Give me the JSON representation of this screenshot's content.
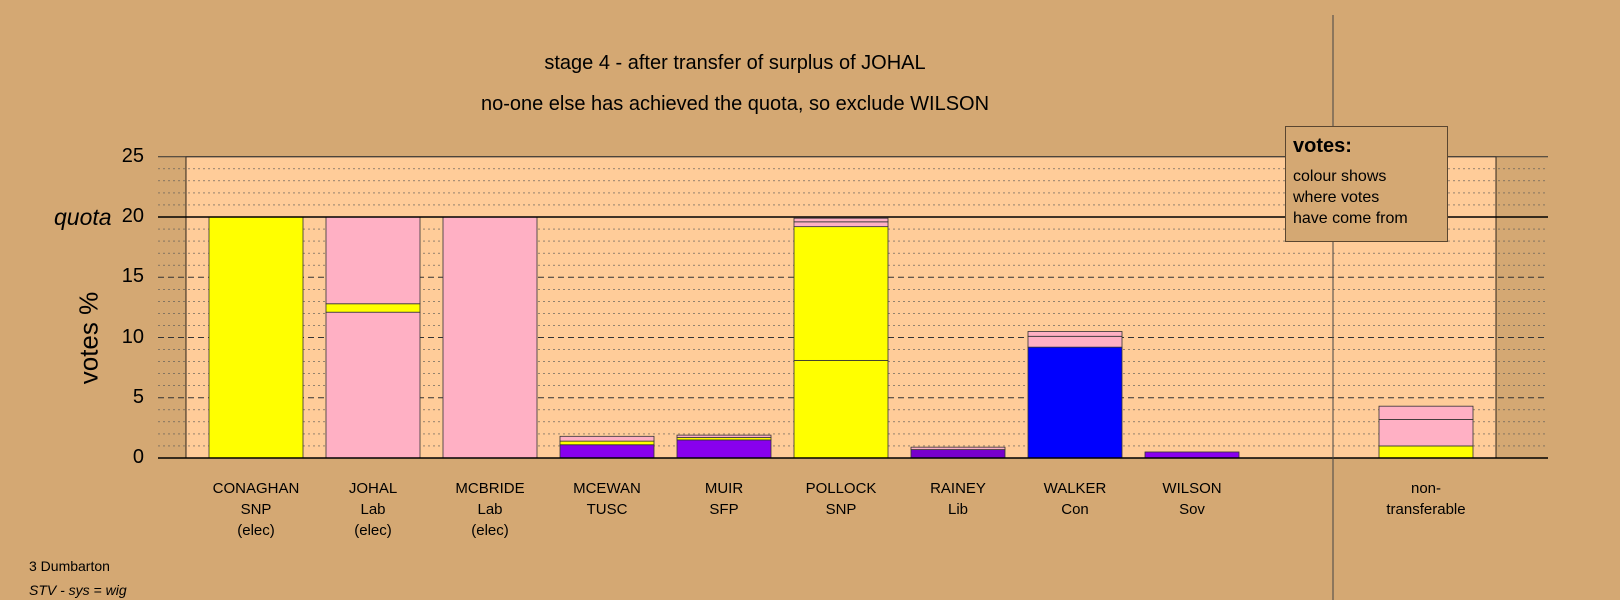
{
  "titles": {
    "line1": "stage 4 - after transfer of surplus of JOHAL",
    "line2": "no-one else has achieved the quota, so exclude WILSON"
  },
  "legend": {
    "title": "votes:",
    "lines": [
      "colour shows",
      "where votes",
      "have come from"
    ]
  },
  "footer": {
    "line1": "3 Dumbarton",
    "line2": "STV - sys = wig"
  },
  "colors": {
    "background": "#d4a873",
    "plot_area": "#ffcc99",
    "SNP": "#ffff00",
    "Lab": "#ffb0c4",
    "Con": "#0000ff",
    "Other": "#8800ee",
    "Lib": "#7700cc"
  },
  "chart_data": {
    "type": "bar",
    "stacked": true,
    "ylabel": "votes %",
    "ylim": [
      0,
      25
    ],
    "yticks": [
      "0",
      "5",
      "10",
      "15",
      "20",
      "25"
    ],
    "quota": 20,
    "quota_label": "quota",
    "grid": true,
    "legend_position": "top-right",
    "candidates": [
      {
        "name": "CONAGHAN",
        "party": "SNP",
        "status": "(elec)",
        "segments": [
          {
            "source": "SNP",
            "color": "#ffff00",
            "value": 20
          }
        ]
      },
      {
        "name": "JOHAL",
        "party": "Lab",
        "status": "(elec)",
        "segments": [
          {
            "source": "Lab",
            "color": "#ffb0c4",
            "value": 12.1
          },
          {
            "source": "SNP",
            "color": "#ffff00",
            "value": 0.7
          },
          {
            "source": "Lab",
            "color": "#ffb0c4",
            "value": 7.2
          }
        ]
      },
      {
        "name": "MCBRIDE",
        "party": "Lab",
        "status": "(elec)",
        "segments": [
          {
            "source": "Lab",
            "color": "#ffb0c4",
            "value": 20
          }
        ]
      },
      {
        "name": "MCEWAN",
        "party": "TUSC",
        "status": "",
        "segments": [
          {
            "source": "TUSC",
            "color": "#8800ee",
            "value": 1.1
          },
          {
            "source": "SNP",
            "color": "#ffff00",
            "value": 0.3
          },
          {
            "source": "Lab",
            "color": "#ffb0c4",
            "value": 0.4
          }
        ]
      },
      {
        "name": "MUIR",
        "party": "SFP",
        "status": "",
        "segments": [
          {
            "source": "SFP",
            "color": "#8800ee",
            "value": 1.5
          },
          {
            "source": "SNP",
            "color": "#ffff00",
            "value": 0.2
          },
          {
            "source": "Lab",
            "color": "#ffb0c4",
            "value": 0.2
          }
        ]
      },
      {
        "name": "POLLOCK",
        "party": "SNP",
        "status": "",
        "segments": [
          {
            "source": "SNP",
            "color": "#ffff00",
            "value": 8.1
          },
          {
            "source": "SNP",
            "color": "#ffff00",
            "value": 11.1
          },
          {
            "source": "Lab",
            "color": "#ffb0c4",
            "value": 0.4
          },
          {
            "source": "Lab",
            "color": "#ffb0c4",
            "value": 0.3
          }
        ]
      },
      {
        "name": "RAINEY",
        "party": "Lib",
        "status": "",
        "segments": [
          {
            "source": "Lib",
            "color": "#7700cc",
            "value": 0.7
          },
          {
            "source": "Lab",
            "color": "#ffb0c4",
            "value": 0.2
          }
        ]
      },
      {
        "name": "WALKER",
        "party": "Con",
        "status": "",
        "segments": [
          {
            "source": "Con",
            "color": "#0000ff",
            "value": 9.2
          },
          {
            "source": "Lab",
            "color": "#ffb0c4",
            "value": 0.9
          },
          {
            "source": "Lab",
            "color": "#ffb0c4",
            "value": 0.4
          }
        ]
      },
      {
        "name": "WILSON",
        "party": "Sov",
        "status": "",
        "segments": [
          {
            "source": "Sov",
            "color": "#8800ee",
            "value": 0.5
          }
        ]
      }
    ],
    "nontransferable": {
      "label_line1": "non-",
      "label_line2": "transferable",
      "segments": [
        {
          "source": "SNP",
          "color": "#ffff00",
          "value": 1.0
        },
        {
          "source": "Lab",
          "color": "#ffb0c4",
          "value": 2.2
        },
        {
          "source": "Lab",
          "color": "#ffb0c4",
          "value": 1.1
        }
      ]
    }
  }
}
